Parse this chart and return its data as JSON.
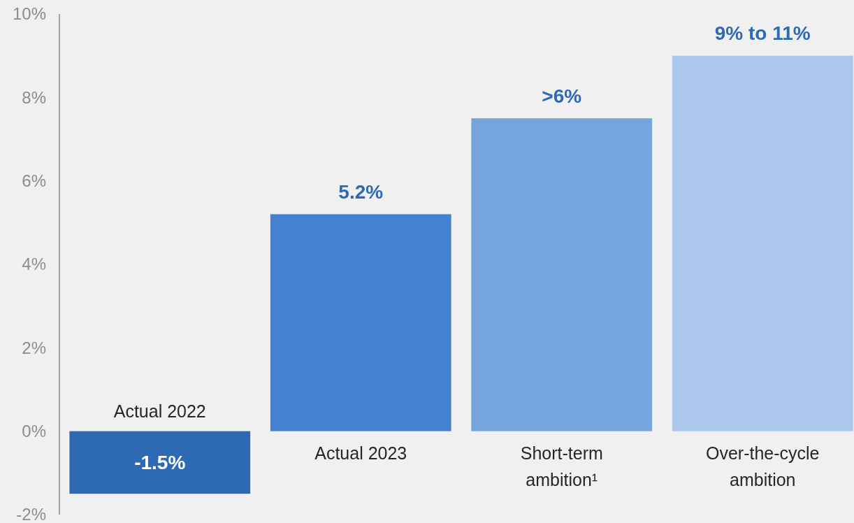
{
  "chart_data": {
    "type": "bar",
    "categories": [
      "Actual 2022",
      "Actual 2023",
      "Short-term ambition¹",
      "Over-the-cycle ambition"
    ],
    "values": [
      -1.5,
      5.2,
      7.5,
      9.0
    ],
    "colors": [
      "#2e6ab3",
      "#4382d0",
      "#74a5dc",
      "#abc8ec"
    ],
    "value_labels": [
      "-1.5%",
      "5.2%",
      ">6%",
      "9% to 11%"
    ],
    "ylim": [
      -2,
      10
    ],
    "yticks": [
      {
        "value": -2,
        "label": "-2%"
      },
      {
        "value": 0,
        "label": "0%"
      },
      {
        "value": 2,
        "label": "2%"
      },
      {
        "value": 4,
        "label": "4%"
      },
      {
        "value": 6,
        "label": "6%"
      },
      {
        "value": 8,
        "label": "8%"
      },
      {
        "value": 10,
        "label": "10%"
      }
    ],
    "grid": false
  }
}
